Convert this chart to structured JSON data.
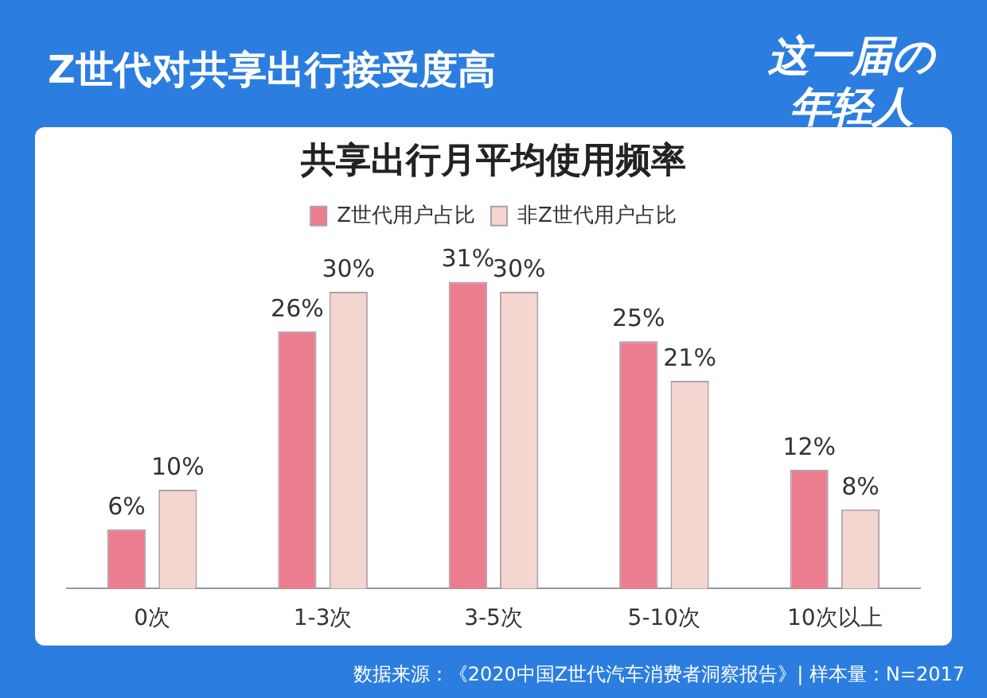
{
  "chart_data": {
    "type": "bar",
    "title": "共享出行月平均使用频率",
    "subtitle": "Z世代对共享出行接受度高",
    "categories": [
      "0次",
      "1-3次",
      "3-5次",
      "5-10次",
      "10次以上"
    ],
    "series": [
      {
        "name": "Z世代用户占比",
        "color": "#ec7d8e",
        "values": [
          6,
          26,
          31,
          25,
          12
        ],
        "value_labels": [
          "6%",
          "26%",
          "31%",
          "25%",
          "12%"
        ]
      },
      {
        "name": "非Z世代用户占比",
        "color": "#f2d6cf",
        "values": [
          10,
          30,
          30,
          21,
          8
        ],
        "value_labels": [
          "10%",
          "30%",
          "30%",
          "21%",
          "8%"
        ]
      }
    ],
    "legend": "top",
    "grid": false,
    "tick_labels": "x",
    "annotations": [
      "这一届の年轻人",
      "数据来源：《2020中国Z世代汽车消费者洞察报告》| 样本量：N=2017"
    ]
  }
}
